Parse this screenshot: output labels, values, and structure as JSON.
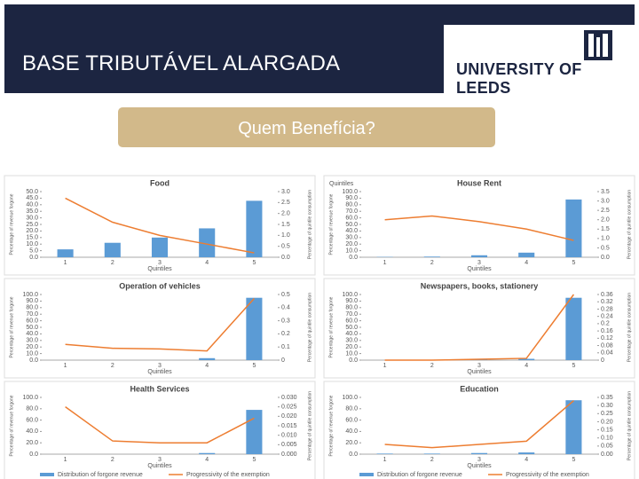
{
  "header": {
    "title": "BASE TRIBUTÁVEL ALARGADA",
    "logo_text": "UNIVERSITY OF LEEDS"
  },
  "button": {
    "label": "Quem Benefícia?"
  },
  "chart_data": [
    {
      "type": "combo",
      "title": "Food",
      "x_label": "Quintiles",
      "y_label": "Percentage of revenue forgone",
      "y2_label": "Percentage of quintile consumption",
      "categories": [
        "1",
        "2",
        "3",
        "4",
        "5"
      ],
      "series": [
        {
          "color": "#5b9bd5",
          "values": [
            6,
            11,
            15,
            22,
            43
          ]
        },
        {
          "color": "#ed7d31",
          "values": [
            2.7,
            1.6,
            1.0,
            0.6,
            0.2
          ],
          "axis": "y2"
        }
      ],
      "ylim": [
        0,
        50
      ],
      "yticks": [
        {
          "value": 0,
          "label": "0.0"
        },
        {
          "value": 5,
          "label": "5.0"
        },
        {
          "value": 10,
          "label": "10.0"
        },
        {
          "value": 15,
          "label": "15.0"
        },
        {
          "value": 20,
          "label": "20.0"
        },
        {
          "value": 25,
          "label": "25.0"
        },
        {
          "value": 30,
          "label": "30.0"
        },
        {
          "value": 35,
          "label": "35.0"
        },
        {
          "value": 40,
          "label": "40.0"
        },
        {
          "value": 45,
          "label": "45.0"
        },
        {
          "value": 50,
          "label": "50.0"
        }
      ],
      "y2lim": [
        0,
        3
      ],
      "y2ticks": [
        {
          "value": 0,
          "label": "0.0"
        },
        0.5,
        {
          "value": 1,
          "label": "1.0"
        },
        1.5,
        {
          "value": 2,
          "label": "2.0"
        },
        2.5,
        {
          "value": 3,
          "label": "3.0"
        }
      ]
    },
    {
      "type": "combo",
      "title": "House Rent",
      "annotation": "Quintiles",
      "x_label": "Quintiles",
      "y_label": "Percentage of revenue forgone",
      "y2_label": "Percentage of quintile consumption",
      "categories": [
        "1",
        "2",
        "3",
        "4",
        "5"
      ],
      "series": [
        {
          "color": "#5b9bd5",
          "values": [
            0.5,
            1,
            3,
            7,
            88
          ]
        },
        {
          "color": "#ed7d31",
          "values": [
            2.0,
            2.2,
            1.9,
            1.5,
            0.9
          ],
          "axis": "y2"
        }
      ],
      "ylim": [
        0,
        100
      ],
      "yticks": [
        {
          "value": 0,
          "label": "0.0"
        },
        {
          "value": 10,
          "label": "10.0"
        },
        {
          "value": 20,
          "label": "20.0"
        },
        {
          "value": 30,
          "label": "30.0"
        },
        {
          "value": 40,
          "label": "40.0"
        },
        {
          "value": 50,
          "label": "50.0"
        },
        {
          "value": 60,
          "label": "60.0"
        },
        {
          "value": 70,
          "label": "70.0"
        },
        {
          "value": 80,
          "label": "80.0"
        },
        {
          "value": 90,
          "label": "90.0"
        },
        {
          "value": 100,
          "label": "100.0"
        }
      ],
      "y2lim": [
        0,
        3.5
      ],
      "y2ticks": [
        {
          "value": 0,
          "label": "0.0"
        },
        0.5,
        {
          "value": 1,
          "label": "1.0"
        },
        1.5,
        {
          "value": 2,
          "label": "2.0"
        },
        2.5,
        {
          "value": 3,
          "label": "3.0"
        },
        3.5
      ]
    },
    {
      "type": "combo",
      "title": "Operation of vehicles",
      "x_label": "Quintiles",
      "y_label": "Percentage of revenue forgone",
      "y2_label": "Percentage of quintile consumption",
      "categories": [
        "1",
        "2",
        "3",
        "4",
        "5"
      ],
      "series": [
        {
          "color": "#5b9bd5",
          "values": [
            0,
            0,
            0,
            3,
            95
          ]
        },
        {
          "color": "#ed7d31",
          "values": [
            0.12,
            0.09,
            0.085,
            0.07,
            0.47
          ],
          "axis": "y2"
        }
      ],
      "ylim": [
        0,
        100
      ],
      "yticks": [
        {
          "value": 0,
          "label": "0.0"
        },
        {
          "value": 10,
          "label": "10.0"
        },
        {
          "value": 20,
          "label": "20.0"
        },
        {
          "value": 30,
          "label": "30.0"
        },
        {
          "value": 40,
          "label": "40.0"
        },
        {
          "value": 50,
          "label": "50.0"
        },
        {
          "value": 60,
          "label": "60.0"
        },
        {
          "value": 70,
          "label": "70.0"
        },
        {
          "value": 80,
          "label": "80.0"
        },
        {
          "value": 90,
          "label": "90.0"
        },
        {
          "value": 100,
          "label": "100.0"
        }
      ],
      "y2lim": [
        0,
        0.5
      ],
      "y2ticks": [
        0,
        0.1,
        0.2,
        0.3,
        0.4,
        0.5
      ]
    },
    {
      "type": "combo",
      "title": "Newspapers, books, stationery",
      "x_label": "Quintiles",
      "y_label": "Percentage of revenue forgone",
      "y2_label": "Percentage of quintile consumption",
      "categories": [
        "1",
        "2",
        "3",
        "4",
        "5"
      ],
      "series": [
        {
          "color": "#5b9bd5",
          "values": [
            0,
            0,
            1,
            2,
            95
          ]
        },
        {
          "color": "#ed7d31",
          "values": [
            0,
            0,
            0.005,
            0.01,
            0.36
          ],
          "axis": "y2"
        }
      ],
      "ylim": [
        0,
        100
      ],
      "yticks": [
        {
          "value": 0,
          "label": "0.0"
        },
        {
          "value": 10,
          "label": "10.0"
        },
        {
          "value": 20,
          "label": "20.0"
        },
        {
          "value": 30,
          "label": "30.0"
        },
        {
          "value": 40,
          "label": "40.0"
        },
        {
          "value": 50,
          "label": "50.0"
        },
        {
          "value": 60,
          "label": "60.0"
        },
        {
          "value": 70,
          "label": "70.0"
        },
        {
          "value": 80,
          "label": "80.0"
        },
        {
          "value": 90,
          "label": "90.0"
        },
        {
          "value": 100,
          "label": "100.0"
        }
      ],
      "y2lim": [
        0,
        0.36
      ],
      "y2ticks": [
        0,
        0.04,
        0.08,
        0.12,
        0.16,
        0.2,
        0.24,
        0.28,
        0.32,
        0.36
      ]
    },
    {
      "type": "combo",
      "title": "Health Services",
      "x_label": "Quintiles",
      "y_label": "Percentage of revenue forgone",
      "y2_label": "Percentage of quintile consumption",
      "categories": [
        "1",
        "2",
        "3",
        "4",
        "5"
      ],
      "series": [
        {
          "name": "Distribution of forgone revenue",
          "color": "#5b9bd5",
          "values": [
            0,
            0,
            0,
            2,
            78
          ]
        },
        {
          "name": "Progressivity of the exemption",
          "color": "#ed7d31",
          "values": [
            0.025,
            0.007,
            0.006,
            0.006,
            0.019
          ],
          "axis": "y2"
        }
      ],
      "ylim": [
        0,
        100
      ],
      "yticks": [
        {
          "value": 0,
          "label": "0.0"
        },
        {
          "value": 20,
          "label": "20.0"
        },
        {
          "value": 40,
          "label": "40.0"
        },
        {
          "value": 60,
          "label": "60.0"
        },
        {
          "value": 80,
          "label": "80.0"
        },
        {
          "value": 100,
          "label": "100.0"
        }
      ],
      "y2lim": [
        0,
        0.03
      ],
      "y2ticks": [
        {
          "value": 0,
          "label": "0.000"
        },
        {
          "value": 0.005,
          "label": "0.005"
        },
        {
          "value": 0.01,
          "label": "0.010"
        },
        {
          "value": 0.015,
          "label": "0.015"
        },
        {
          "value": 0.02,
          "label": "0.020"
        },
        {
          "value": 0.025,
          "label": "0.025"
        },
        {
          "value": 0.03,
          "label": "0.030"
        }
      ],
      "legend": "bottom"
    },
    {
      "type": "combo",
      "title": "Education",
      "x_label": "Quintiles",
      "y_label": "Percentage of revenue forgone",
      "y2_label": "Percentage of quintile consumption",
      "categories": [
        "1",
        "2",
        "3",
        "4",
        "5"
      ],
      "series": [
        {
          "name": "Distribution of forgone revenue",
          "color": "#5b9bd5",
          "values": [
            1,
            1,
            2,
            3,
            95
          ]
        },
        {
          "name": "Progressivity of the exemption",
          "color": "#ed7d31",
          "values": [
            0.06,
            0.04,
            0.06,
            0.08,
            0.33
          ],
          "axis": "y2"
        }
      ],
      "ylim": [
        0,
        100
      ],
      "yticks": [
        {
          "value": 0,
          "label": "0.0"
        },
        {
          "value": 20,
          "label": "20.0"
        },
        {
          "value": 40,
          "label": "40.0"
        },
        {
          "value": 60,
          "label": "60.0"
        },
        {
          "value": 80,
          "label": "80.0"
        },
        {
          "value": 100,
          "label": "100.0"
        }
      ],
      "y2lim": [
        0,
        0.35
      ],
      "y2ticks": [
        {
          "value": 0,
          "label": "0.00"
        },
        0.05,
        {
          "value": 0.1,
          "label": "0.10"
        },
        0.15,
        {
          "value": 0.2,
          "label": "0.20"
        },
        0.25,
        {
          "value": 0.3,
          "label": "0.30"
        },
        0.35
      ],
      "legend": "bottom"
    }
  ]
}
